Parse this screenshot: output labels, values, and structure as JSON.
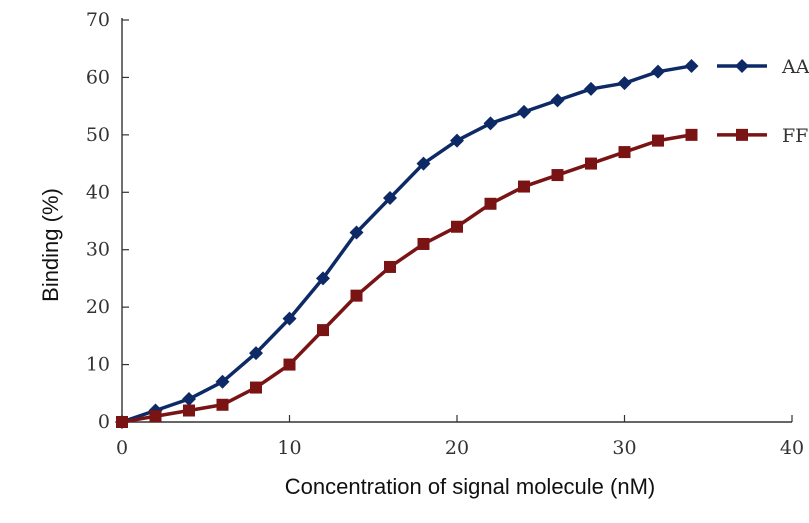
{
  "chart_data": {
    "type": "line",
    "title": "",
    "xlabel": "Concentration of signal molecule (nM)",
    "ylabel": "Binding (%)",
    "xlim": [
      0,
      40
    ],
    "ylim": [
      0,
      70
    ],
    "xticks": [
      0,
      10,
      20,
      30,
      40
    ],
    "yticks": [
      0,
      10,
      20,
      30,
      40,
      50,
      60,
      70
    ],
    "grid": false,
    "legend": "right",
    "series": [
      {
        "name": "AA",
        "color": "#0d2a66",
        "marker": "diamond",
        "x": [
          0,
          2,
          4,
          6,
          8,
          10,
          12,
          14,
          16,
          18,
          20,
          22,
          24,
          26,
          28,
          30,
          32,
          34
        ],
        "y": [
          0,
          2,
          4,
          7,
          12,
          18,
          25,
          33,
          39,
          45,
          49,
          52,
          54,
          56,
          58,
          59,
          61,
          62
        ]
      },
      {
        "name": "FF",
        "color": "#7a1414",
        "marker": "square",
        "x": [
          0,
          2,
          4,
          6,
          8,
          10,
          12,
          14,
          16,
          18,
          20,
          22,
          24,
          26,
          28,
          30,
          32,
          34
        ],
        "y": [
          0,
          1,
          2,
          3,
          6,
          10,
          16,
          22,
          27,
          31,
          34,
          38,
          41,
          43,
          45,
          47,
          49,
          50
        ]
      }
    ]
  }
}
